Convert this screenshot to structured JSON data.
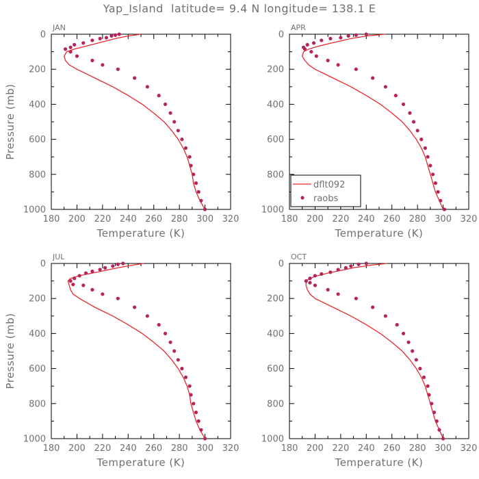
{
  "title": "Yap_Island  latitude= 9.4 N longitude= 138.1 E",
  "colors": {
    "model": "#e8272c",
    "obs": "#b5245a",
    "axis": "#707070"
  },
  "chart_data": [
    {
      "type": "line",
      "label": "JAN",
      "xlabel": "Temperature (K)",
      "ylabel": "Pressure (mb)",
      "xlim": [
        180,
        320
      ],
      "ylim": [
        1000,
        0
      ],
      "xticks": [
        "180",
        "200",
        "220",
        "240",
        "260",
        "280",
        "300",
        "320"
      ],
      "yticks": [
        "0",
        "200",
        "400",
        "600",
        "800",
        "1000"
      ],
      "series": [
        {
          "name": "dflt092",
          "kind": "line",
          "x": [
            300,
            296,
            293,
            291,
            290,
            288,
            286,
            283,
            279,
            274,
            268,
            260,
            251,
            240,
            228,
            214,
            200,
            194,
            191,
            190,
            192,
            198,
            206,
            214,
            222,
            230,
            240,
            250
          ],
          "y": [
            1000,
            950,
            900,
            850,
            800,
            750,
            700,
            650,
            600,
            550,
            500,
            450,
            400,
            350,
            300,
            250,
            200,
            175,
            150,
            125,
            100,
            85,
            70,
            55,
            40,
            25,
            10,
            0
          ]
        },
        {
          "name": "raobs",
          "kind": "scatter",
          "x": [
            300,
            297,
            295,
            293,
            291,
            289,
            288,
            285,
            282,
            279,
            276,
            273,
            269,
            264,
            255,
            245,
            232,
            220,
            212,
            200,
            195,
            191,
            195,
            198,
            205,
            212,
            218,
            223,
            227,
            230,
            233
          ],
          "y": [
            1000,
            950,
            900,
            850,
            800,
            750,
            700,
            650,
            600,
            550,
            500,
            450,
            400,
            350,
            300,
            250,
            200,
            175,
            150,
            125,
            100,
            85,
            75,
            60,
            50,
            35,
            25,
            20,
            10,
            5,
            0
          ]
        }
      ]
    },
    {
      "type": "line",
      "label": "APR",
      "xlabel": "Temperature (K)",
      "ylabel": "",
      "xlim": [
        180,
        320
      ],
      "ylim": [
        1000,
        0
      ],
      "xticks": [
        "180",
        "200",
        "220",
        "240",
        "260",
        "280",
        "300",
        "320"
      ],
      "yticks": [
        "0",
        "200",
        "400",
        "600",
        "800",
        "1000"
      ],
      "series": [
        {
          "name": "dflt092",
          "kind": "line",
          "x": [
            300,
            297,
            294,
            292,
            290,
            288,
            286,
            283,
            279,
            274,
            268,
            260,
            251,
            240,
            228,
            214,
            200,
            195,
            192,
            190,
            191,
            195,
            202,
            210,
            219,
            228,
            240,
            255
          ],
          "y": [
            1000,
            950,
            900,
            850,
            800,
            750,
            700,
            650,
            600,
            550,
            500,
            450,
            400,
            350,
            300,
            250,
            200,
            175,
            150,
            125,
            100,
            85,
            70,
            55,
            40,
            25,
            10,
            0
          ]
        },
        {
          "name": "raobs",
          "kind": "scatter",
          "x": [
            301,
            298,
            296,
            294,
            292,
            290,
            288,
            286,
            283,
            280,
            277,
            274,
            269,
            263,
            255,
            245,
            232,
            218,
            210,
            201,
            197,
            192,
            191,
            194,
            199,
            205,
            212,
            220,
            226,
            232,
            240
          ],
          "y": [
            1000,
            950,
            900,
            850,
            800,
            750,
            700,
            650,
            600,
            550,
            500,
            450,
            400,
            350,
            300,
            250,
            200,
            175,
            150,
            125,
            100,
            85,
            75,
            60,
            50,
            35,
            25,
            20,
            10,
            5,
            0
          ]
        }
      ],
      "legend": {
        "placement": "bottom-left",
        "entries": [
          "dflt092",
          "raobs"
        ]
      }
    },
    {
      "type": "line",
      "label": "JUL",
      "xlabel": "Temperature (K)",
      "ylabel": "Pressure (mb)",
      "xlim": [
        180,
        320
      ],
      "ylim": [
        1000,
        0
      ],
      "xticks": [
        "180",
        "200",
        "220",
        "240",
        "260",
        "280",
        "300",
        "320"
      ],
      "yticks": [
        "0",
        "200",
        "400",
        "600",
        "800",
        "1000"
      ],
      "series": [
        {
          "name": "dflt092",
          "kind": "line",
          "x": [
            300,
            296,
            293,
            291,
            289,
            288,
            286,
            283,
            279,
            274,
            268,
            260,
            251,
            240,
            228,
            214,
            202,
            197,
            195,
            194,
            193,
            195,
            202,
            212,
            222,
            232,
            243,
            252
          ],
          "y": [
            1000,
            950,
            900,
            850,
            800,
            750,
            700,
            650,
            600,
            550,
            500,
            450,
            400,
            350,
            300,
            250,
            200,
            175,
            150,
            125,
            100,
            85,
            70,
            55,
            40,
            25,
            10,
            0
          ]
        },
        {
          "name": "raobs",
          "kind": "scatter",
          "x": [
            300,
            297,
            295,
            293,
            291,
            289,
            288,
            285,
            282,
            279,
            276,
            273,
            269,
            264,
            255,
            245,
            232,
            220,
            212,
            205,
            197,
            195,
            198,
            202,
            207,
            212,
            218,
            222,
            228,
            232,
            236
          ],
          "y": [
            1000,
            950,
            900,
            850,
            800,
            750,
            700,
            650,
            600,
            550,
            500,
            450,
            400,
            350,
            300,
            250,
            200,
            175,
            150,
            125,
            120,
            100,
            85,
            70,
            55,
            45,
            35,
            25,
            15,
            5,
            0
          ]
        }
      ]
    },
    {
      "type": "line",
      "label": "OCT",
      "xlabel": "Temperature (K)",
      "ylabel": "",
      "xlim": [
        180,
        320
      ],
      "ylim": [
        1000,
        0
      ],
      "xticks": [
        "180",
        "200",
        "220",
        "240",
        "260",
        "280",
        "300",
        "320"
      ],
      "yticks": [
        "0",
        "200",
        "400",
        "600",
        "800",
        "1000"
      ],
      "series": [
        {
          "name": "dflt092",
          "kind": "line",
          "x": [
            300,
            297,
            294,
            292,
            290,
            288,
            286,
            283,
            279,
            274,
            268,
            260,
            251,
            240,
            228,
            214,
            200,
            196,
            194,
            193,
            193,
            196,
            202,
            210,
            220,
            230,
            243,
            256
          ],
          "y": [
            1000,
            950,
            900,
            850,
            800,
            750,
            700,
            650,
            600,
            550,
            500,
            450,
            400,
            350,
            300,
            250,
            200,
            175,
            150,
            125,
            100,
            85,
            70,
            55,
            40,
            25,
            10,
            0
          ]
        },
        {
          "name": "raobs",
          "kind": "scatter",
          "x": [
            300,
            297,
            295,
            293,
            291,
            289,
            288,
            285,
            282,
            279,
            276,
            273,
            269,
            264,
            255,
            245,
            232,
            218,
            210,
            200,
            196,
            193,
            196,
            200,
            205,
            212,
            218,
            224,
            228,
            234,
            240
          ],
          "y": [
            1000,
            950,
            900,
            850,
            800,
            750,
            700,
            650,
            600,
            550,
            500,
            450,
            400,
            350,
            300,
            250,
            200,
            175,
            150,
            125,
            110,
            100,
            85,
            70,
            60,
            50,
            35,
            25,
            15,
            5,
            0
          ]
        }
      ]
    }
  ]
}
